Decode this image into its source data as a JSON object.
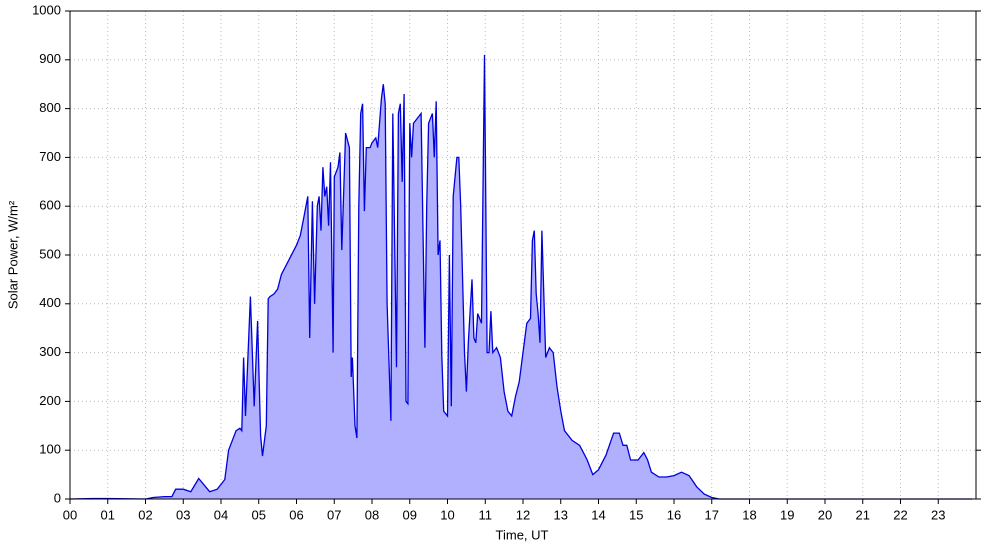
{
  "chart_data": {
    "type": "area",
    "xlabel": "Time, UT",
    "ylabel": "Solar Power, W/m²",
    "xlim": [
      0,
      24
    ],
    "ylim": [
      0,
      1000
    ],
    "xticks": [
      {
        "value": 0,
        "label": "00"
      },
      {
        "value": 1,
        "label": "01"
      },
      {
        "value": 2,
        "label": "02"
      },
      {
        "value": 3,
        "label": "03"
      },
      {
        "value": 4,
        "label": "04"
      },
      {
        "value": 5,
        "label": "05"
      },
      {
        "value": 6,
        "label": "06"
      },
      {
        "value": 7,
        "label": "07"
      },
      {
        "value": 8,
        "label": "08"
      },
      {
        "value": 9,
        "label": "09"
      },
      {
        "value": 10,
        "label": "10"
      },
      {
        "value": 11,
        "label": "11"
      },
      {
        "value": 12,
        "label": "12"
      },
      {
        "value": 13,
        "label": "13"
      },
      {
        "value": 14,
        "label": "14"
      },
      {
        "value": 15,
        "label": "15"
      },
      {
        "value": 16,
        "label": "16"
      },
      {
        "value": 17,
        "label": "17"
      },
      {
        "value": 18,
        "label": "18"
      },
      {
        "value": 19,
        "label": "19"
      },
      {
        "value": 20,
        "label": "20"
      },
      {
        "value": 21,
        "label": "21"
      },
      {
        "value": 22,
        "label": "22"
      },
      {
        "value": 23,
        "label": "23"
      }
    ],
    "yticks": [
      0,
      100,
      200,
      300,
      400,
      500,
      600,
      700,
      800,
      900,
      1000
    ],
    "grid": true,
    "color": "#0000dd",
    "fill_color": "#b0b0ff",
    "x": [
      0,
      0.6,
      1.0,
      2.0,
      2.2,
      2.5,
      2.7,
      2.8,
      3.0,
      3.2,
      3.41,
      3.7,
      3.9,
      4.0,
      4.1,
      4.2,
      4.4,
      4.5,
      4.55,
      4.6,
      4.65,
      4.78,
      4.88,
      4.97,
      5.05,
      5.1,
      5.2,
      5.25,
      5.3,
      5.4,
      5.5,
      5.6,
      5.8,
      6.0,
      6.1,
      6.2,
      6.3,
      6.35,
      6.42,
      6.48,
      6.55,
      6.6,
      6.65,
      6.7,
      6.75,
      6.8,
      6.85,
      6.9,
      6.97,
      7.0,
      7.1,
      7.15,
      7.2,
      7.3,
      7.4,
      7.45,
      7.48,
      7.55,
      7.6,
      7.65,
      7.7,
      7.75,
      7.8,
      7.85,
      7.95,
      8.0,
      8.1,
      8.15,
      8.25,
      8.3,
      8.35,
      8.4,
      8.5,
      8.55,
      8.65,
      8.7,
      8.75,
      8.8,
      8.85,
      8.9,
      8.95,
      9.0,
      9.05,
      9.1,
      9.2,
      9.3,
      9.4,
      9.45,
      9.5,
      9.6,
      9.65,
      9.7,
      9.75,
      9.8,
      9.85,
      9.9,
      10.0,
      10.05,
      10.1,
      10.15,
      10.25,
      10.3,
      10.35,
      10.45,
      10.5,
      10.55,
      10.65,
      10.7,
      10.75,
      10.8,
      10.9,
      10.98,
      11.05,
      11.1,
      11.15,
      11.2,
      11.3,
      11.4,
      11.5,
      11.6,
      11.7,
      11.8,
      11.9,
      12.0,
      12.1,
      12.2,
      12.25,
      12.3,
      12.35,
      12.4,
      12.45,
      12.5,
      12.6,
      12.7,
      12.8,
      12.9,
      13.0,
      13.1,
      13.3,
      13.5,
      13.6,
      13.7,
      13.85,
      14.0,
      14.2,
      14.4,
      14.55,
      14.65,
      14.75,
      14.85,
      15.05,
      15.2,
      15.3,
      15.4,
      15.6,
      15.8,
      16.0,
      16.2,
      16.4,
      16.6,
      16.8,
      17.0,
      17.2,
      23.9
    ],
    "values": [
      0,
      1,
      1,
      0,
      3,
      5,
      5,
      20,
      20,
      15,
      42,
      15,
      20,
      30,
      40,
      100,
      140,
      145,
      140,
      290,
      170,
      415,
      190,
      365,
      130,
      88,
      150,
      410,
      415,
      420,
      430,
      460,
      490,
      520,
      540,
      580,
      620,
      330,
      610,
      400,
      600,
      620,
      550,
      680,
      620,
      640,
      560,
      690,
      300,
      660,
      680,
      710,
      510,
      750,
      720,
      250,
      290,
      150,
      125,
      600,
      790,
      810,
      590,
      720,
      720,
      730,
      740,
      720,
      820,
      850,
      810,
      400,
      160,
      790,
      270,
      790,
      810,
      650,
      830,
      200,
      195,
      770,
      700,
      770,
      780,
      790,
      310,
      600,
      770,
      790,
      700,
      815,
      500,
      530,
      295,
      180,
      170,
      500,
      190,
      620,
      700,
      700,
      600,
      300,
      220,
      320,
      450,
      330,
      320,
      380,
      360,
      910,
      300,
      300,
      385,
      300,
      310,
      290,
      220,
      180,
      170,
      210,
      240,
      300,
      360,
      370,
      530,
      550,
      420,
      380,
      320,
      550,
      290,
      310,
      300,
      230,
      180,
      140,
      120,
      110,
      95,
      80,
      50,
      60,
      90,
      135,
      135,
      110,
      110,
      80,
      80,
      95,
      80,
      55,
      45,
      45,
      48,
      55,
      48,
      25,
      10,
      3,
      0,
      0
    ]
  }
}
